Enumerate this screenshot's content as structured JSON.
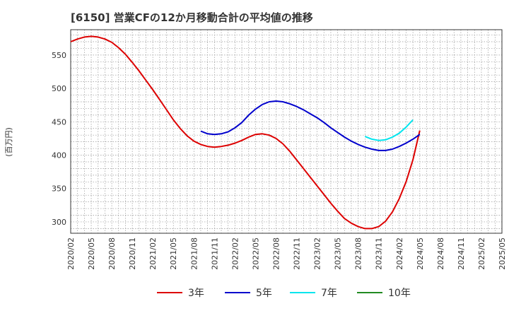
{
  "title": "[6150]  営業CFの12か月移動合計の平均値の推移",
  "chart_data": {
    "type": "line",
    "title": "[6150]  営業CFの12か月移動合計の平均値の推移",
    "ylabel": "(百万円)",
    "xlabel": "",
    "ylim": [
      283,
      588
    ],
    "yticks": [
      300,
      350,
      400,
      450,
      500,
      550
    ],
    "xlim": [
      "2020/02",
      "2025/05"
    ],
    "xticks": [
      "2020/02",
      "2020/05",
      "2020/08",
      "2020/11",
      "2021/02",
      "2021/05",
      "2021/08",
      "2021/11",
      "2022/02",
      "2022/05",
      "2022/08",
      "2022/11",
      "2023/02",
      "2023/05",
      "2023/08",
      "2023/11",
      "2024/02",
      "2024/05",
      "2024/08",
      "2024/11",
      "2025/02",
      "2025/05"
    ],
    "grid": true,
    "legend_position": "bottom",
    "series": [
      {
        "name": "3年",
        "color": "#dd0000",
        "points": [
          [
            "2020/02",
            570
          ],
          [
            "2020/03",
            574
          ],
          [
            "2020/04",
            577
          ],
          [
            "2020/05",
            578
          ],
          [
            "2020/06",
            577
          ],
          [
            "2020/07",
            574
          ],
          [
            "2020/08",
            569
          ],
          [
            "2020/09",
            561
          ],
          [
            "2020/10",
            551
          ],
          [
            "2020/11",
            539
          ],
          [
            "2020/12",
            526
          ],
          [
            "2021/01",
            512
          ],
          [
            "2021/02",
            498
          ],
          [
            "2021/03",
            483
          ],
          [
            "2021/04",
            468
          ],
          [
            "2021/05",
            453
          ],
          [
            "2021/06",
            440
          ],
          [
            "2021/07",
            429
          ],
          [
            "2021/08",
            421
          ],
          [
            "2021/09",
            416
          ],
          [
            "2021/10",
            413
          ],
          [
            "2021/11",
            412
          ],
          [
            "2021/12",
            413
          ],
          [
            "2022/01",
            415
          ],
          [
            "2022/02",
            418
          ],
          [
            "2022/03",
            422
          ],
          [
            "2022/04",
            427
          ],
          [
            "2022/05",
            431
          ],
          [
            "2022/06",
            432
          ],
          [
            "2022/07",
            430
          ],
          [
            "2022/08",
            425
          ],
          [
            "2022/09",
            417
          ],
          [
            "2022/10",
            406
          ],
          [
            "2022/11",
            393
          ],
          [
            "2022/12",
            380
          ],
          [
            "2023/01",
            367
          ],
          [
            "2023/02",
            354
          ],
          [
            "2023/03",
            341
          ],
          [
            "2023/04",
            328
          ],
          [
            "2023/05",
            316
          ],
          [
            "2023/06",
            305
          ],
          [
            "2023/07",
            298
          ],
          [
            "2023/08",
            293
          ],
          [
            "2023/09",
            290
          ],
          [
            "2023/10",
            290
          ],
          [
            "2023/11",
            293
          ],
          [
            "2023/12",
            301
          ],
          [
            "2024/01",
            315
          ],
          [
            "2024/02",
            335
          ],
          [
            "2024/03",
            360
          ],
          [
            "2024/04",
            393
          ],
          [
            "2024/05",
            437
          ]
        ]
      },
      {
        "name": "5年",
        "color": "#0000cc",
        "points": [
          [
            "2021/09",
            436
          ],
          [
            "2021/10",
            432
          ],
          [
            "2021/11",
            431
          ],
          [
            "2021/12",
            432
          ],
          [
            "2022/01",
            435
          ],
          [
            "2022/02",
            441
          ],
          [
            "2022/03",
            449
          ],
          [
            "2022/04",
            460
          ],
          [
            "2022/05",
            469
          ],
          [
            "2022/06",
            476
          ],
          [
            "2022/07",
            480
          ],
          [
            "2022/08",
            481
          ],
          [
            "2022/09",
            480
          ],
          [
            "2022/10",
            477
          ],
          [
            "2022/11",
            473
          ],
          [
            "2022/12",
            468
          ],
          [
            "2023/01",
            462
          ],
          [
            "2023/02",
            456
          ],
          [
            "2023/03",
            449
          ],
          [
            "2023/04",
            441
          ],
          [
            "2023/05",
            434
          ],
          [
            "2023/06",
            427
          ],
          [
            "2023/07",
            421
          ],
          [
            "2023/08",
            416
          ],
          [
            "2023/09",
            412
          ],
          [
            "2023/10",
            409
          ],
          [
            "2023/11",
            407
          ],
          [
            "2023/12",
            407
          ],
          [
            "2024/01",
            409
          ],
          [
            "2024/02",
            413
          ],
          [
            "2024/03",
            418
          ],
          [
            "2024/04",
            424
          ],
          [
            "2024/05",
            431
          ]
        ]
      },
      {
        "name": "7年",
        "color": "#00e5ee",
        "points": [
          [
            "2023/09",
            428
          ],
          [
            "2023/10",
            424
          ],
          [
            "2023/11",
            422
          ],
          [
            "2023/12",
            423
          ],
          [
            "2024/01",
            427
          ],
          [
            "2024/02",
            433
          ],
          [
            "2024/03",
            442
          ],
          [
            "2024/04",
            453
          ]
        ]
      },
      {
        "name": "10年",
        "color": "#228b22",
        "points": []
      }
    ]
  }
}
